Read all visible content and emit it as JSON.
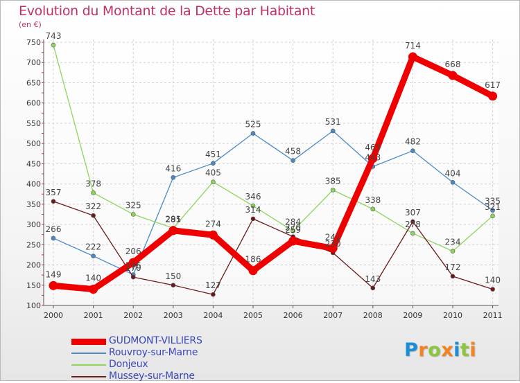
{
  "chart_data": {
    "type": "line",
    "title": "Evolution du Montant de la Dette par Habitant",
    "unit_label": "(en €)",
    "x": [
      "2000",
      "2001",
      "2002",
      "2003",
      "2004",
      "2005",
      "2006",
      "2007",
      "2008",
      "2009",
      "2010",
      "2011"
    ],
    "ylim": [
      100,
      750
    ],
    "yticks": [
      100,
      150,
      200,
      250,
      300,
      350,
      400,
      450,
      500,
      550,
      600,
      650,
      700,
      750
    ],
    "grid": true,
    "legend_position": "bottom-left",
    "series": [
      {
        "name": "GUDMONT-VILLIERS",
        "color": "#ee0000",
        "values": [
          149,
          140,
          206,
          285,
          274,
          186,
          259,
          241,
          463,
          714,
          668,
          617
        ]
      },
      {
        "name": "Rouvroy-sur-Marne",
        "color": "#4b8ac8",
        "values": [
          266,
          222,
          176,
          416,
          451,
          525,
          458,
          531,
          443,
          482,
          404,
          335
        ]
      },
      {
        "name": "Donjeux",
        "color": "#8ed55c",
        "values": [
          743,
          378,
          325,
          291,
          405,
          346,
          284,
          385,
          338,
          278,
          234,
          321
        ]
      },
      {
        "name": "Mussey-sur-Marne",
        "color": "#6a1a1a",
        "values": [
          357,
          322,
          170,
          150,
          127,
          314,
          270,
          230,
          143,
          307,
          172,
          140
        ]
      }
    ]
  },
  "logo": {
    "letters": [
      "P",
      "r",
      "o",
      "x",
      "i",
      "t",
      "i"
    ],
    "colors": [
      "#1a8fd8",
      "#f58220",
      "#8cc63f",
      "#f58220",
      "#1a8fd8",
      "#8cc63f",
      "#f58220"
    ]
  }
}
